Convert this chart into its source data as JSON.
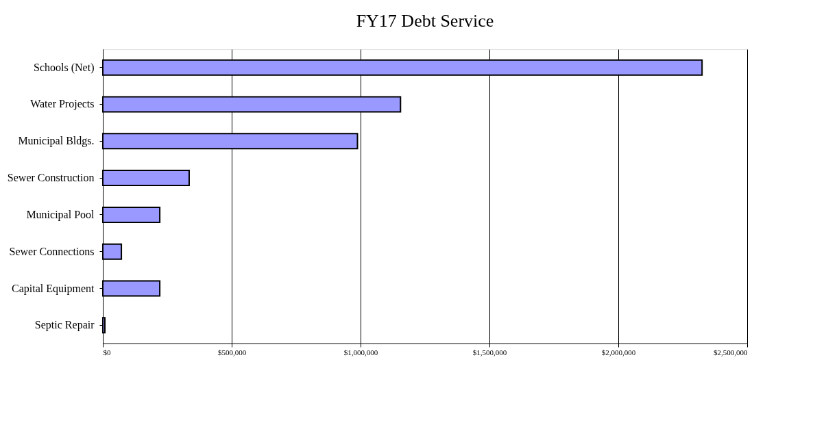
{
  "chart_data": {
    "type": "bar",
    "orientation": "horizontal",
    "title": "FY17 Debt Service",
    "categories": [
      "Schools (Net)",
      "Water Projects",
      "Municipal Bldgs.",
      "Sewer Construction",
      "Municipal Pool",
      "Sewer Connections",
      "Capital Equipment",
      "Septic Repair"
    ],
    "series": [
      {
        "color": "#9999ff",
        "values": [
          2325000,
          1155000,
          988000,
          335000,
          221000,
          72000,
          221000,
          8000
        ]
      }
    ],
    "xlim": [
      0,
      2500000
    ],
    "xticks": [
      {
        "value": 0,
        "label": "$0"
      },
      {
        "value": 500000,
        "label": "$500,000"
      },
      {
        "value": 1000000,
        "label": "$1,000,000"
      },
      {
        "value": 1500000,
        "label": "$1,500,000"
      },
      {
        "value": 2000000,
        "label": "$2,000,000"
      },
      {
        "value": 2500000,
        "label": "$2,500,000"
      }
    ],
    "grid": "x",
    "legend": false
  }
}
